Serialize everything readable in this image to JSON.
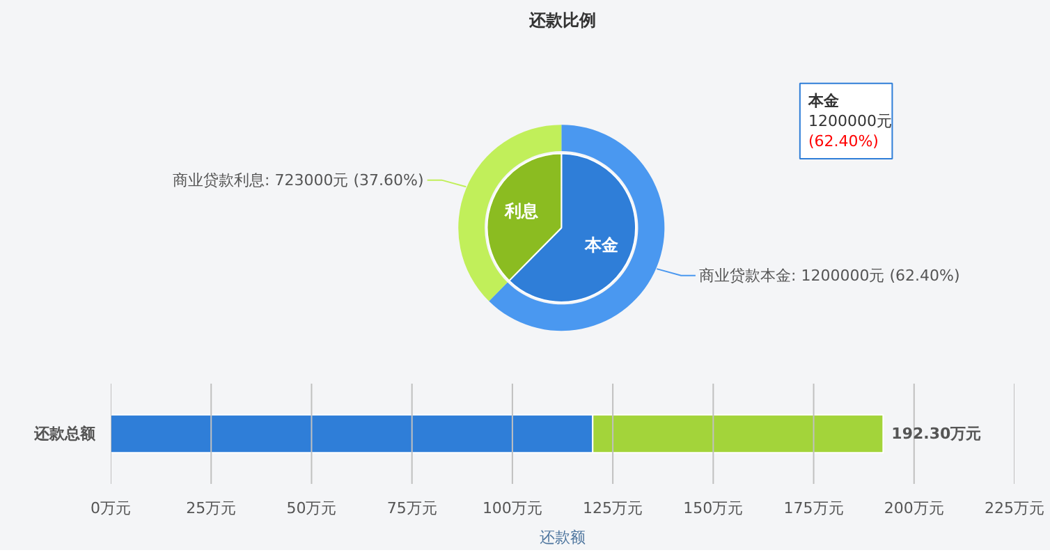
{
  "chart_data": [
    {
      "type": "pie",
      "title": "还款比例",
      "categories": [
        "本金",
        "利息"
      ],
      "series": [
        {
          "type": "pie",
          "colors": [
            "#2f7ed8",
            "#8bbc21"
          ],
          "values": [
            62.4,
            37.6
          ]
        },
        {
          "type": "donut",
          "colors": [
            "#4a98f0",
            "#c1ef5a"
          ],
          "values": [
            1200000,
            723000
          ],
          "value_labels": [
            "商业贷款本金: 1200000元 (62.40%)",
            "商业贷款利息: 723000元 (37.60%)"
          ]
        }
      ],
      "annotations": [
        "本金\n1200000元\n(62.40%)"
      ]
    },
    {
      "type": "bar",
      "orientation": "horizontal",
      "stacked": true,
      "categories": [
        "还款总额"
      ],
      "series": [
        {
          "color": "#2f7ed8",
          "values": [
            120
          ]
        },
        {
          "color": "#a3d43a",
          "values": [
            72.3
          ]
        }
      ],
      "xlim": [
        0,
        225
      ],
      "xticks": [
        {
          "value": 0,
          "label": "0万元"
        },
        {
          "value": 25,
          "label": "25万元"
        },
        {
          "value": 50,
          "label": "50万元"
        },
        {
          "value": 75,
          "label": "75万元"
        },
        {
          "value": 100,
          "label": "100万元"
        },
        {
          "value": 125,
          "label": "125万元"
        },
        {
          "value": 150,
          "label": "150万元"
        },
        {
          "value": 175,
          "label": "175万元"
        },
        {
          "value": 200,
          "label": "200万元"
        },
        {
          "value": 225,
          "label": "225万元"
        }
      ],
      "xlabel": "还款额",
      "grid": "x",
      "totals": [
        "192.30万元"
      ]
    }
  ]
}
